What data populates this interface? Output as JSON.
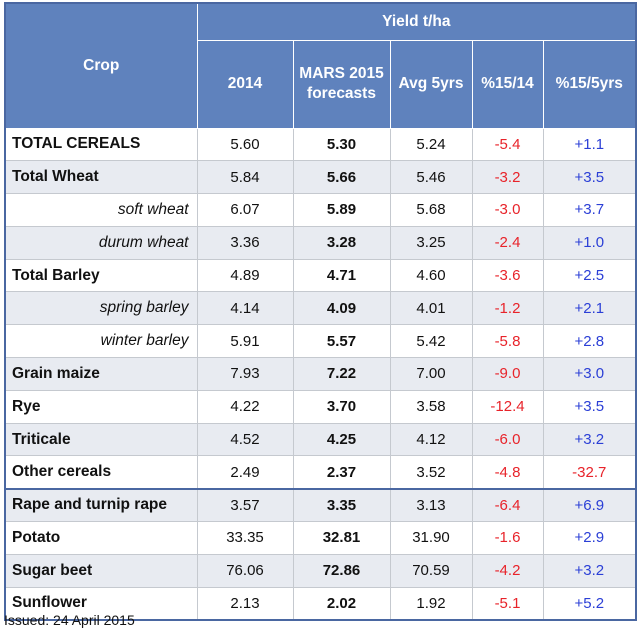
{
  "header": {
    "crop_label": "Crop",
    "group_label": "Yield t/ha",
    "col_2014": "2014",
    "col_mars_line1": "MARS 2015",
    "col_mars_line2": "forecasts",
    "col_avg": "Avg 5yrs",
    "col_pct1514": "%15/14",
    "col_pct155": "%15/5yrs"
  },
  "rows": [
    {
      "crop": "TOTAL CEREALS",
      "y2014": "5.60",
      "mars": "5.30",
      "avg": "5.24",
      "p1514": "-5.4",
      "p155": "+1.1"
    },
    {
      "crop": "Total Wheat",
      "y2014": "5.84",
      "mars": "5.66",
      "avg": "5.46",
      "p1514": "-3.2",
      "p155": "+3.5"
    },
    {
      "crop": "soft wheat",
      "y2014": "6.07",
      "mars": "5.89",
      "avg": "5.68",
      "p1514": "-3.0",
      "p155": "+3.7"
    },
    {
      "crop": "durum wheat",
      "y2014": "3.36",
      "mars": "3.28",
      "avg": "3.25",
      "p1514": "-2.4",
      "p155": "+1.0"
    },
    {
      "crop": "Total Barley",
      "y2014": "4.89",
      "mars": "4.71",
      "avg": "4.60",
      "p1514": "-3.6",
      "p155": "+2.5"
    },
    {
      "crop": "spring barley",
      "y2014": "4.14",
      "mars": "4.09",
      "avg": "4.01",
      "p1514": "-1.2",
      "p155": "+2.1"
    },
    {
      "crop": "winter barley",
      "y2014": "5.91",
      "mars": "5.57",
      "avg": "5.42",
      "p1514": "-5.8",
      "p155": "+2.8"
    },
    {
      "crop": "Grain maize",
      "y2014": "7.93",
      "mars": "7.22",
      "avg": "7.00",
      "p1514": "-9.0",
      "p155": "+3.0"
    },
    {
      "crop": "Rye",
      "y2014": "4.22",
      "mars": "3.70",
      "avg": "3.58",
      "p1514": "-12.4",
      "p155": "+3.5"
    },
    {
      "crop": "Triticale",
      "y2014": "4.52",
      "mars": "4.25",
      "avg": "4.12",
      "p1514": "-6.0",
      "p155": "+3.2"
    },
    {
      "crop": "Other cereals",
      "y2014": "2.49",
      "mars": "2.37",
      "avg": "3.52",
      "p1514": "-4.8",
      "p155": "-32.7"
    },
    {
      "crop": "Rape and turnip rape",
      "y2014": "3.57",
      "mars": "3.35",
      "avg": "3.13",
      "p1514": "-6.4",
      "p155": "+6.9"
    },
    {
      "crop": "Potato",
      "y2014": "33.35",
      "mars": "32.81",
      "avg": "31.90",
      "p1514": "-1.6",
      "p155": "+2.9"
    },
    {
      "crop": "Sugar beet",
      "y2014": "76.06",
      "mars": "72.86",
      "avg": "70.59",
      "p1514": "-4.2",
      "p155": "+3.2"
    },
    {
      "crop": "Sunflower",
      "y2014": "2.13",
      "mars": "2.02",
      "avg": "1.92",
      "p1514": "-5.1",
      "p155": "+5.2"
    }
  ],
  "colors": {
    "header_bg": "#5f82bd",
    "negative": "#e8232a",
    "positive": "#2b3fd6",
    "stripe": "#e8ebf1"
  },
  "footer": {
    "issued": "Issued: 24 April 2015"
  }
}
